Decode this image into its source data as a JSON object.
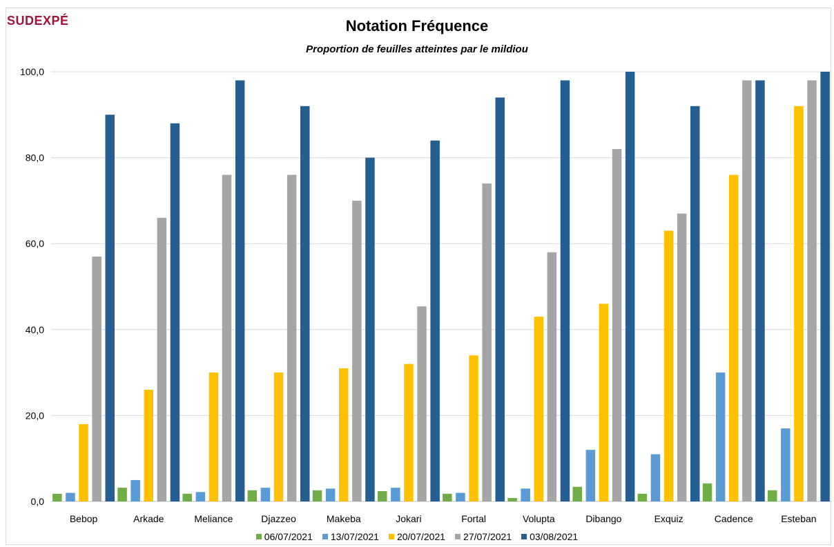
{
  "logo": {
    "text": "SUDEXPÉ"
  },
  "chart_data": {
    "type": "bar",
    "title": "Notation Fréquence",
    "subtitle": "Proportion de feuilles atteintes par le mildiou",
    "categories": [
      "Bebop",
      "Arkade",
      "Meliance",
      "Djazzeo",
      "Makeba",
      "Jokari",
      "Fortal",
      "Volupta",
      "Dibango",
      "Exquiz",
      "Cadence",
      "Esteban"
    ],
    "series": [
      {
        "name": "06/07/2021",
        "color": "#70ad47",
        "values": [
          1.8,
          3.2,
          1.8,
          2.6,
          2.6,
          2.4,
          1.8,
          0.8,
          3.4,
          1.8,
          4.2,
          2.6
        ]
      },
      {
        "name": "13/07/2021",
        "color": "#5b9bd5",
        "values": [
          2.0,
          5.0,
          2.2,
          3.2,
          3.0,
          3.2,
          2.0,
          3.0,
          12.0,
          11.0,
          30.0,
          17.0
        ]
      },
      {
        "name": "20/07/2021",
        "color": "#ffc000",
        "values": [
          18,
          26,
          30,
          30,
          31,
          32,
          34,
          43,
          46,
          63,
          76,
          92
        ]
      },
      {
        "name": "27/07/2021",
        "color": "#a5a5a5",
        "values": [
          57,
          66,
          76,
          76,
          70,
          45.4,
          74,
          58,
          82,
          67,
          98,
          98
        ]
      },
      {
        "name": "03/08/2021",
        "color": "#255e91",
        "values": [
          90,
          88,
          98,
          92,
          80,
          84,
          94,
          98,
          100,
          92,
          98,
          100
        ]
      }
    ],
    "ylim": [
      0,
      100
    ],
    "yticks": [
      "0,0",
      "20,0",
      "40,0",
      "60,0",
      "80,0",
      "100,0"
    ],
    "ytick_values": [
      0,
      20,
      40,
      60,
      80,
      100
    ],
    "grid": true,
    "legend_position": "bottom"
  }
}
